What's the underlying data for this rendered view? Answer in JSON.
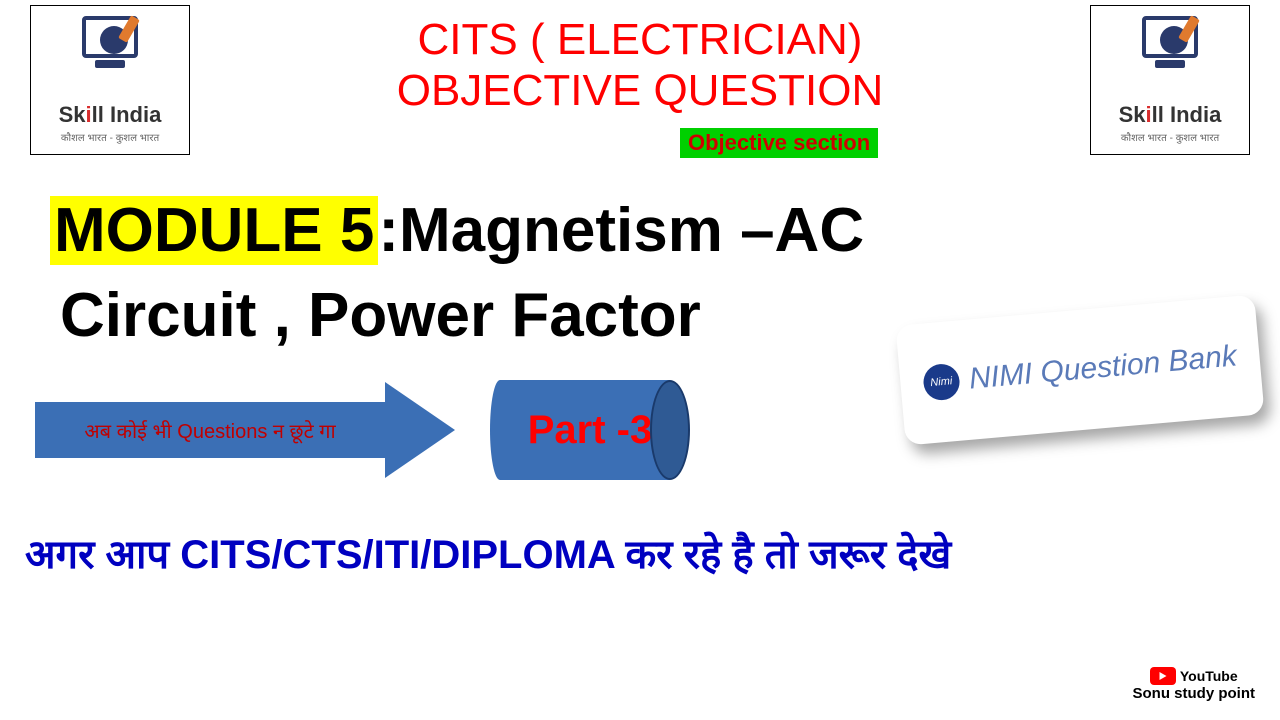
{
  "logo": {
    "brand_pre": "Sk",
    "brand_i": "i",
    "brand_post": "ll India",
    "tagline": "कौशल भारत - कुशल भारत"
  },
  "header": {
    "line1": "CITS ( ELECTRICIAN)",
    "line2": "OBJECTIVE QUESTION",
    "badge": "Objective  section"
  },
  "module": {
    "highlight": "MODULE 5",
    "rest1": ":Magnetism –AC",
    "line2": "Circuit , Power Factor"
  },
  "nimi": {
    "circle": "Nimi",
    "text": "NIMI Question Bank"
  },
  "arrow": {
    "text": "अब कोई भी Questions न छूटे गा"
  },
  "part": {
    "label": "Part -3"
  },
  "bottom": {
    "text": "अगर  आप  CITS/CTS/ITI/DIPLOMA कर  रहे  है  तो  जरूर  देखे"
  },
  "youtube": {
    "label": "YouTube",
    "channel": "Sonu study point"
  },
  "colors": {
    "red": "#ff0000",
    "green_bg": "#00d000",
    "yellow_bg": "#ffff00",
    "blue_shape": "#3b6fb5",
    "dark_blue_text": "#0000c0",
    "nimi_text": "#5a7ab8"
  }
}
